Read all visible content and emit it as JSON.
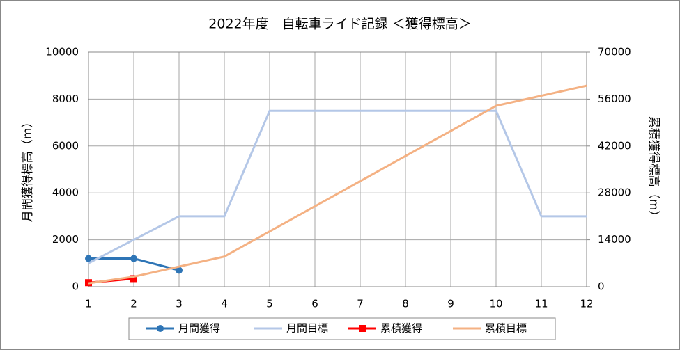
{
  "chart_data": {
    "type": "line",
    "title": "2022年度　自転車ライド記録 ＜獲得標高＞",
    "y_label": "月間獲得標高（m）",
    "y2_label": "累積獲得標高（m）",
    "categories": [
      "1",
      "2",
      "3",
      "4",
      "5",
      "6",
      "7",
      "8",
      "9",
      "10",
      "11",
      "12"
    ],
    "ylim": [
      0,
      10000
    ],
    "yticks": [
      0,
      2000,
      4000,
      6000,
      8000,
      10000
    ],
    "y2lim": [
      0,
      70000
    ],
    "y2ticks": [
      0,
      14000,
      28000,
      42000,
      56000,
      70000
    ],
    "grid": true,
    "legend": "bottom",
    "series": [
      {
        "name": "月間獲得",
        "color": "#2e75b6",
        "marker": "circle",
        "values": [
          1200,
          1200,
          700,
          null,
          null,
          null,
          null,
          null,
          null,
          null,
          null,
          null
        ]
      },
      {
        "name": "月間目標",
        "color": "#b4c7e7",
        "values": [
          1000,
          2000,
          3000,
          3000,
          7500,
          7500,
          7500,
          7500,
          7500,
          7500,
          3000,
          3000
        ]
      },
      {
        "name": "累積獲得",
        "color": "#ff0000",
        "marker": "square",
        "axis": "y2",
        "values": [
          1200,
          2400,
          null,
          null,
          null,
          null,
          null,
          null,
          null,
          null,
          null,
          null
        ]
      },
      {
        "name": "累積目標",
        "color": "#f4b183",
        "axis": "y2",
        "values": [
          1000,
          3000,
          6000,
          9000,
          16500,
          24000,
          31500,
          39000,
          46500,
          54000,
          57000,
          60000
        ]
      }
    ]
  }
}
